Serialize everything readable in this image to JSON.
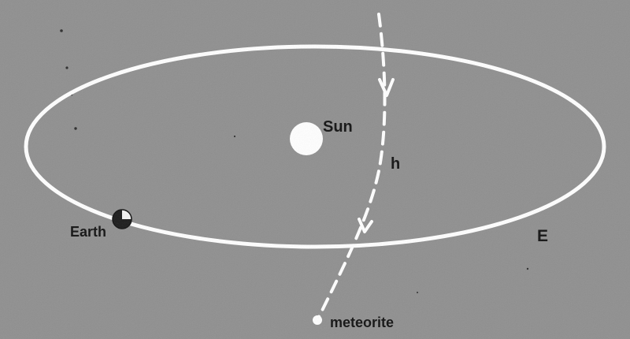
{
  "labels": {
    "sun": "Sun",
    "earth": "Earth",
    "orbit": "E",
    "path": "h",
    "meteorite": "meteorite"
  },
  "colors": {
    "background": "#8f8f8f",
    "orbit": "#ffffff",
    "sun": "#ffffff",
    "meteorite_path": "#ffffff",
    "earth_dark": "#1a1a1a",
    "earth_light": "#f2f2f2",
    "text": "#111111"
  }
}
